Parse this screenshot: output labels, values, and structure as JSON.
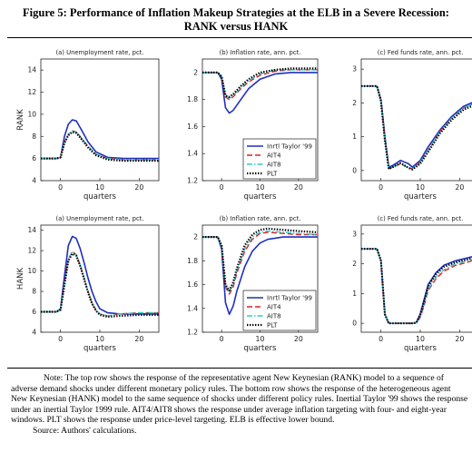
{
  "figure": {
    "title_line1": "Figure 5:  Performance of Inflation Makeup Strategies at the ELB in a Severe Recession:",
    "title_line2": "RANK versus HANK",
    "note": "Note:  The top row shows the response of the representative agent New Keynesian (RANK) model to a sequence of adverse demand shocks under different monetary policy rules.  The bottom row shows the response of the heterogeneous agent New Keynesian (HANK) model to the same sequence of shocks under different policy rules.  Inertial Taylor '99 shows the response under an inertial Taylor 1999 rule.  AIT4/AIT8 shows the response under average inflation targeting with four- and eight-year windows.  PLT shows the response under price-level targeting.  ELB is effective lower bound.",
    "source": "Source: Authors' calculations."
  },
  "colors": {
    "inertial": "#1f2fbf",
    "ait4": "#e02020",
    "ait8": "#33cccc",
    "plt": "#000000"
  },
  "chart_data": [
    {
      "type": "line",
      "row": "RANK",
      "title": "(a) Unemployment rate, pct.",
      "xlabel": "quarters",
      "ylabel": "RANK",
      "xlim": [
        -5,
        25
      ],
      "ylim": [
        4,
        15
      ],
      "xticks": [
        0,
        10,
        20
      ],
      "yticks": [
        4,
        6,
        8,
        10,
        12,
        14
      ],
      "series": [
        {
          "key": "inertial",
          "style": "solid",
          "x": [
            -5,
            -1,
            0,
            1,
            2,
            3,
            4,
            5,
            7,
            9,
            12,
            16,
            20,
            25
          ],
          "y": [
            6,
            6,
            6.1,
            8,
            9.1,
            9.5,
            9.4,
            8.8,
            7.5,
            6.6,
            6.1,
            6,
            6,
            6
          ]
        },
        {
          "key": "ait4",
          "style": "dashed",
          "x": [
            -5,
            -1,
            0,
            1,
            2,
            3,
            4,
            5,
            7,
            9,
            12,
            16,
            20,
            25
          ],
          "y": [
            6,
            6,
            6.1,
            7.5,
            8.2,
            8.5,
            8.4,
            8,
            7.1,
            6.4,
            6,
            5.9,
            5.9,
            5.9
          ]
        },
        {
          "key": "ait8",
          "style": "dashdot",
          "x": [
            -5,
            -1,
            0,
            1,
            2,
            3,
            4,
            5,
            7,
            9,
            12,
            16,
            20,
            25
          ],
          "y": [
            6,
            6,
            6.1,
            7.5,
            8.2,
            8.5,
            8.4,
            8,
            7.1,
            6.4,
            6,
            5.9,
            5.9,
            5.9
          ]
        },
        {
          "key": "plt",
          "style": "dotted",
          "x": [
            -5,
            -1,
            0,
            1,
            2,
            3,
            4,
            5,
            7,
            9,
            12,
            16,
            20,
            25
          ],
          "y": [
            6,
            6,
            6.1,
            7.4,
            8.1,
            8.4,
            8.3,
            7.9,
            7,
            6.3,
            5.9,
            5.8,
            5.8,
            5.8
          ]
        }
      ]
    },
    {
      "type": "line",
      "row": "RANK",
      "title": "(b) Inflation rate, ann. pct.",
      "xlabel": "quarters",
      "ylabel": "",
      "xlim": [
        -5,
        25
      ],
      "ylim": [
        1.2,
        2.1
      ],
      "xticks": [
        0,
        10,
        20
      ],
      "yticks": [
        1.2,
        1.4,
        1.6,
        1.8,
        2
      ],
      "legend": {
        "placement": "bottom-right",
        "entries": [
          "Inrtl Taylor '99",
          "AIT4",
          "AIT8",
          "PLT"
        ]
      },
      "series": [
        {
          "key": "inertial",
          "style": "solid",
          "x": [
            -5,
            -1,
            0,
            1,
            2,
            3,
            5,
            7,
            10,
            14,
            18,
            25
          ],
          "y": [
            2,
            2,
            1.95,
            1.74,
            1.7,
            1.72,
            1.8,
            1.88,
            1.95,
            1.99,
            2,
            2
          ]
        },
        {
          "key": "ait4",
          "style": "dashed",
          "x": [
            -5,
            -1,
            0,
            1,
            2,
            3,
            5,
            7,
            10,
            14,
            18,
            25
          ],
          "y": [
            2,
            2,
            1.97,
            1.82,
            1.8,
            1.82,
            1.88,
            1.93,
            1.98,
            2.01,
            2.02,
            2.02
          ]
        },
        {
          "key": "ait8",
          "style": "dashdot",
          "x": [
            -5,
            -1,
            0,
            1,
            2,
            3,
            5,
            7,
            10,
            14,
            18,
            25
          ],
          "y": [
            2,
            2,
            1.97,
            1.83,
            1.81,
            1.83,
            1.89,
            1.94,
            1.99,
            2.02,
            2.02,
            2.02
          ]
        },
        {
          "key": "plt",
          "style": "dotted",
          "x": [
            -5,
            -1,
            0,
            1,
            2,
            3,
            5,
            7,
            10,
            14,
            18,
            25
          ],
          "y": [
            2,
            2,
            1.97,
            1.83,
            1.82,
            1.84,
            1.9,
            1.95,
            2,
            2.02,
            2.03,
            2.03
          ]
        }
      ]
    },
    {
      "type": "line",
      "row": "RANK",
      "title": "(c) Fed funds rate, ann. pct.",
      "xlabel": "quarters",
      "ylabel": "",
      "xlim": [
        -5,
        25
      ],
      "ylim": [
        -0.3,
        3.3
      ],
      "xticks": [
        0,
        10,
        20
      ],
      "yticks": [
        0,
        1,
        2,
        3
      ],
      "series": [
        {
          "key": "inertial",
          "style": "solid",
          "x": [
            -5,
            -1,
            0,
            1,
            2,
            3,
            5,
            7,
            8,
            10,
            12,
            15,
            18,
            21,
            25
          ],
          "y": [
            2.5,
            2.5,
            2.1,
            1,
            0.1,
            0.15,
            0.3,
            0.2,
            0.1,
            0.3,
            0.7,
            1.2,
            1.6,
            1.9,
            2.1
          ]
        },
        {
          "key": "ait4",
          "style": "dashed",
          "x": [
            -5,
            -1,
            0,
            1,
            2,
            3,
            5,
            7,
            8,
            10,
            12,
            15,
            18,
            21,
            25
          ],
          "y": [
            2.5,
            2.5,
            2.05,
            0.9,
            0.05,
            0.1,
            0.2,
            0.08,
            0.05,
            0.25,
            0.6,
            1.15,
            1.55,
            1.85,
            2.05
          ]
        },
        {
          "key": "ait8",
          "style": "dashdot",
          "x": [
            -5,
            -1,
            0,
            1,
            2,
            3,
            5,
            7,
            8,
            10,
            12,
            15,
            18,
            21,
            25
          ],
          "y": [
            2.5,
            2.5,
            2.05,
            0.9,
            0.05,
            0.1,
            0.22,
            0.08,
            0.05,
            0.25,
            0.6,
            1.15,
            1.55,
            1.85,
            2.05
          ]
        },
        {
          "key": "plt",
          "style": "dotted",
          "x": [
            -5,
            -1,
            0,
            1,
            2,
            3,
            5,
            7,
            8,
            10,
            12,
            15,
            18,
            21,
            25
          ],
          "y": [
            2.5,
            2.5,
            2.05,
            0.9,
            0.05,
            0.1,
            0.22,
            0.08,
            0.03,
            0.2,
            0.55,
            1.1,
            1.5,
            1.8,
            2
          ]
        }
      ]
    },
    {
      "type": "line",
      "row": "HANK",
      "title": "(a) Unemployment rate, pct.",
      "xlabel": "quarters",
      "ylabel": "HANK",
      "xlim": [
        -5,
        25
      ],
      "ylim": [
        4,
        14.5
      ],
      "xticks": [
        0,
        10,
        20
      ],
      "yticks": [
        4,
        6,
        8,
        10,
        12,
        14
      ],
      "series": [
        {
          "key": "inertial",
          "style": "solid",
          "x": [
            -5,
            -1,
            0,
            1,
            2,
            3,
            4,
            5,
            6,
            7,
            8,
            9,
            10,
            12,
            15,
            20,
            25
          ],
          "y": [
            6,
            6,
            6.3,
            9.5,
            12.5,
            13.4,
            13.2,
            12.2,
            10.8,
            9.3,
            8,
            7,
            6.3,
            5.9,
            5.8,
            5.8,
            5.8
          ]
        },
        {
          "key": "ait4",
          "style": "dashed",
          "x": [
            -5,
            -1,
            0,
            1,
            2,
            3,
            4,
            5,
            6,
            7,
            8,
            9,
            10,
            12,
            15,
            20,
            25
          ],
          "y": [
            6,
            6,
            6.2,
            8.8,
            11.2,
            11.9,
            11.6,
            10.6,
            9.3,
            8,
            6.9,
            6.2,
            5.8,
            5.6,
            5.8,
            5.9,
            5.9
          ]
        },
        {
          "key": "ait8",
          "style": "dashdot",
          "x": [
            -5,
            -1,
            0,
            1,
            2,
            3,
            4,
            5,
            6,
            7,
            8,
            9,
            10,
            12,
            15,
            20,
            25
          ],
          "y": [
            6,
            6,
            6.2,
            8.8,
            11.2,
            11.9,
            11.6,
            10.6,
            9.3,
            8,
            6.9,
            6.2,
            5.8,
            5.6,
            5.8,
            5.9,
            5.9
          ]
        },
        {
          "key": "plt",
          "style": "dotted",
          "x": [
            -5,
            -1,
            0,
            1,
            2,
            3,
            4,
            5,
            6,
            7,
            8,
            9,
            10,
            12,
            15,
            20,
            25
          ],
          "y": [
            6,
            6,
            6.2,
            8.6,
            11,
            11.7,
            11.5,
            10.5,
            9.2,
            7.9,
            6.8,
            6.1,
            5.7,
            5.5,
            5.6,
            5.7,
            5.7
          ]
        }
      ]
    },
    {
      "type": "line",
      "row": "HANK",
      "title": "(b) Inflation rate, ann. pct.",
      "xlabel": "quarters",
      "ylabel": "",
      "xlim": [
        -5,
        25
      ],
      "ylim": [
        1.2,
        2.1
      ],
      "xticks": [
        0,
        10,
        20
      ],
      "yticks": [
        1.2,
        1.4,
        1.6,
        1.8,
        2
      ],
      "legend": {
        "placement": "bottom-right",
        "entries": [
          "Inrtl Taylor '99",
          "AIT4",
          "AIT8",
          "PLT"
        ]
      },
      "series": [
        {
          "key": "inertial",
          "style": "solid",
          "x": [
            -5,
            -1,
            0,
            1,
            2,
            3,
            4,
            6,
            8,
            10,
            12,
            16,
            20,
            25
          ],
          "y": [
            2,
            2,
            1.9,
            1.45,
            1.35,
            1.42,
            1.55,
            1.75,
            1.88,
            1.95,
            1.98,
            2,
            2,
            2
          ]
        },
        {
          "key": "ait4",
          "style": "dashed",
          "x": [
            -5,
            -1,
            0,
            1,
            2,
            3,
            4,
            6,
            8,
            10,
            12,
            16,
            20,
            25
          ],
          "y": [
            2,
            2,
            1.92,
            1.58,
            1.52,
            1.58,
            1.7,
            1.88,
            1.98,
            2.03,
            2.04,
            2.03,
            2.02,
            2.02
          ]
        },
        {
          "key": "ait8",
          "style": "dashdot",
          "x": [
            -5,
            -1,
            0,
            1,
            2,
            3,
            4,
            6,
            8,
            10,
            12,
            16,
            20,
            25
          ],
          "y": [
            2,
            2,
            1.92,
            1.59,
            1.54,
            1.6,
            1.72,
            1.9,
            2,
            2.04,
            2.05,
            2.04,
            2.03,
            2.02
          ]
        },
        {
          "key": "plt",
          "style": "dotted",
          "x": [
            -5,
            -1,
            0,
            1,
            2,
            3,
            4,
            6,
            8,
            10,
            12,
            16,
            20,
            25
          ],
          "y": [
            2,
            2,
            1.93,
            1.6,
            1.55,
            1.62,
            1.74,
            1.93,
            2.02,
            2.06,
            2.07,
            2.06,
            2.05,
            2.04
          ]
        }
      ]
    },
    {
      "type": "line",
      "row": "HANK",
      "title": "(c) Fed funds rate, ann. pct.",
      "xlabel": "quarters",
      "ylabel": "",
      "xlim": [
        -5,
        25
      ],
      "ylim": [
        -0.3,
        3.3
      ],
      "xticks": [
        0,
        10,
        20
      ],
      "yticks": [
        0,
        1,
        2,
        3
      ],
      "series": [
        {
          "key": "inertial",
          "style": "solid",
          "x": [
            -5,
            -1,
            0,
            1,
            2,
            4,
            6,
            8,
            9,
            10,
            11,
            12,
            14,
            16,
            19,
            22,
            25
          ],
          "y": [
            2.5,
            2.5,
            2.1,
            0.3,
            0,
            0,
            0,
            0,
            0.02,
            0.3,
            0.8,
            1.3,
            1.7,
            1.95,
            2.1,
            2.2,
            2.3
          ]
        },
        {
          "key": "ait4",
          "style": "dashed",
          "x": [
            -5,
            -1,
            0,
            1,
            2,
            4,
            6,
            8,
            9,
            10,
            11,
            12,
            14,
            16,
            19,
            22,
            25
          ],
          "y": [
            2.5,
            2.5,
            2.1,
            0.3,
            0,
            0,
            0,
            0,
            0.01,
            0.2,
            0.6,
            1.1,
            1.5,
            1.75,
            1.95,
            2.05,
            2.2
          ]
        },
        {
          "key": "ait8",
          "style": "dashdot",
          "x": [
            -5,
            -1,
            0,
            1,
            2,
            4,
            6,
            8,
            9,
            10,
            11,
            12,
            14,
            16,
            19,
            22,
            25
          ],
          "y": [
            2.5,
            2.5,
            2.1,
            0.3,
            0,
            0,
            0,
            0,
            0.01,
            0.22,
            0.65,
            1.15,
            1.55,
            1.8,
            2,
            2.1,
            2.22
          ]
        },
        {
          "key": "plt",
          "style": "dotted",
          "x": [
            -5,
            -1,
            0,
            1,
            2,
            4,
            6,
            8,
            9,
            10,
            11,
            12,
            14,
            16,
            19,
            22,
            25
          ],
          "y": [
            2.5,
            2.5,
            2.1,
            0.3,
            0,
            0,
            0,
            0,
            0.02,
            0.3,
            0.75,
            1.25,
            1.65,
            1.9,
            2.05,
            2.15,
            2.25
          ]
        }
      ]
    }
  ]
}
